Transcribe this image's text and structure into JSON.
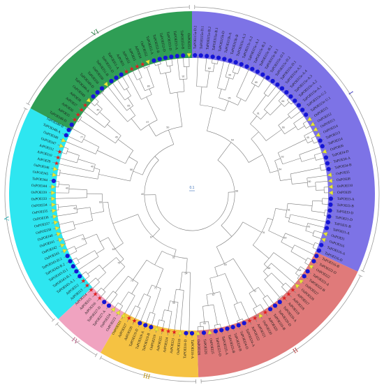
{
  "figure": {
    "background": "#ffffff",
    "scale_bar_label": "0.1"
  },
  "groups": [
    {
      "label": "I",
      "fill": "#7d73e6",
      "text_color": "#3b3bbf",
      "start": 0,
      "end": 115
    },
    {
      "label": "II",
      "fill": "#e07a7a",
      "text_color": "#b53a3a",
      "start": 115,
      "end": 178
    },
    {
      "label": "III",
      "fill": "#f5c242",
      "text_color": "#b88a00",
      "start": 178,
      "end": 210
    },
    {
      "label": "IV",
      "fill": "#f0a3c0",
      "text_color": "#b55a80",
      "start": 210,
      "end": 227
    },
    {
      "label": "V",
      "fill": "#2ee6f0",
      "text_color": "#1aa9b0",
      "start": 227,
      "end": 298
    },
    {
      "label": "VI",
      "fill": "#2f9e55",
      "text_color": "#1f7a3c",
      "start": 298,
      "end": 360
    }
  ],
  "markers": {
    "circle_color": "#1515d6",
    "triangle_color": "#e8e83a",
    "star_color": "#e02020",
    "outline_color": "#3f7f3f"
  },
  "leaves": [
    "TaPOEI15a-D.2",
    "TaPOEI15a-D.1",
    "TaPOEI15a-B.2",
    "TaPOEI15a-B.1",
    "TaPOEI15b-D",
    "TaPOEI15b-A",
    "TaPOEI15b-B",
    "TaPOEI15c-A.3",
    "TaPOEI15c-A.2",
    "TaPOEI15c-A.1",
    "TaPOEI15c-B.3",
    "TaPOEI15c-B.2",
    "TaPOEI15c-B.1",
    "TaPOEI15c-D.3",
    "TaPOEI15c-D.2",
    "TaPOEI15c-D.1",
    "TaPOEI15e-A.5",
    "TaPOEI15e-A.4",
    "TaPOEI15e-A.3",
    "TaPOEI15e-A.2",
    "TaPOEI15e-A.1",
    "TaPOEI15e-U.2",
    "TaPOEI15e-U.1",
    "OsPOEI15",
    "OsPOEI12",
    "OsPOEI13",
    "OsPOEI14",
    "TaPOEI13",
    "TaPOEI14",
    "OsPOEI6",
    "TaPOEI4-D",
    "TaPOEI4-A",
    "TaPOEI4-B",
    "OsPOEI5",
    "OsPOEI8",
    "OsPOEI10",
    "OsPOEI9",
    "TaPOEI3-A",
    "TaPOEI3-B",
    "TaPOEI3-D",
    "TaPOEI1-D",
    "TaPOEI1-B",
    "TaPOEI1-A",
    "OsPOEI1",
    "OsPOEI16",
    "TaPOEI16-A",
    "TaPOEI16-D",
    "TaPOEI16-B",
    "TaPOEI22-D",
    "OsPOEI22",
    "TaPOEI22-A",
    "TaPOEI22-B",
    "OsPOEI27",
    "OsPOEI28",
    "AtPOEI17",
    "AtPOEI18",
    "AtPOEI19",
    "TaPOEI20-A",
    "TaPOEI20-D",
    "TaPOEI20-B",
    "AtPOEI20",
    "OsPOEI20",
    "AtPOEI21",
    "AtPOEI22",
    "TaPOEI24-A",
    "TaPOEI24-D",
    "TaPOEI24-B",
    "TaPOEI25-B",
    "TaPOEI25-A",
    "TaPOEI25-D",
    "OsPOEI25",
    "TaPOEI26",
    "OsPOEI26",
    "TaPOEI18-A",
    "TaPOEI18-D",
    "OsPOEI18",
    "AtPOEI23",
    "AtPOEI24",
    "AtPOEI25",
    "OsPOEI19",
    "TaPOEI19-B",
    "TaPOEI19-A",
    "TaPOEI19-D",
    "AtPOEI26",
    "AtPOEI27",
    "OsPOEI21",
    "OsPOEI23",
    "OsPOEI24",
    "TaPOEI27-A",
    "TaPOEI27-D",
    "AtPOEI16",
    "AtPOEI15",
    "AtPOEI14",
    "AtPOEI13",
    "AtPOEI12",
    "TaPOEI43-A.1",
    "TaPOEI43-B.1",
    "TaPOEI43-D.1",
    "TaPOEI43-B.2",
    "TaPOEI43-D.2",
    "OsPOEI43",
    "OsPOEI42",
    "OsPOEI41",
    "OsPOEI40",
    "OsPOEI38",
    "OsPOEI37",
    "OsPOEI36",
    "OsPOEI35",
    "OsPOEI34",
    "OsPOEI33",
    "OsPOEI39",
    "OsPOEI44",
    "TaPOEI44",
    "OsPOEI45",
    "OsPOEI46",
    "AtPOEI9",
    "AtPOEI10",
    "AtPOEI11",
    "OsPOEI47",
    "OsPOEI48",
    "TaPOEI48-A",
    "TaPOEI48-B",
    "TaPOEI48-D",
    "AtPOEI5",
    "AtPOEI6",
    "AtPOEI7",
    "AtPOEI8",
    "OsPOEI49",
    "TaPOEI49-A",
    "TaPOEI49-D",
    "TaPOEI50",
    "OsPOEI50",
    "TaPOEI51-B",
    "TaPOEI51-D",
    "TaPOEI51-A",
    "AtPOEI1",
    "AtPOEI2",
    "AtPOEI3",
    "AtPOEI4",
    "OsPOEI52",
    "TaPOEI52-A",
    "TaPOEI52-B",
    "TaPOEI52-D",
    "TaPOEI53-D",
    "TaPOEI53-A",
    "TaPOEI53-B",
    "OsPOEI53"
  ]
}
